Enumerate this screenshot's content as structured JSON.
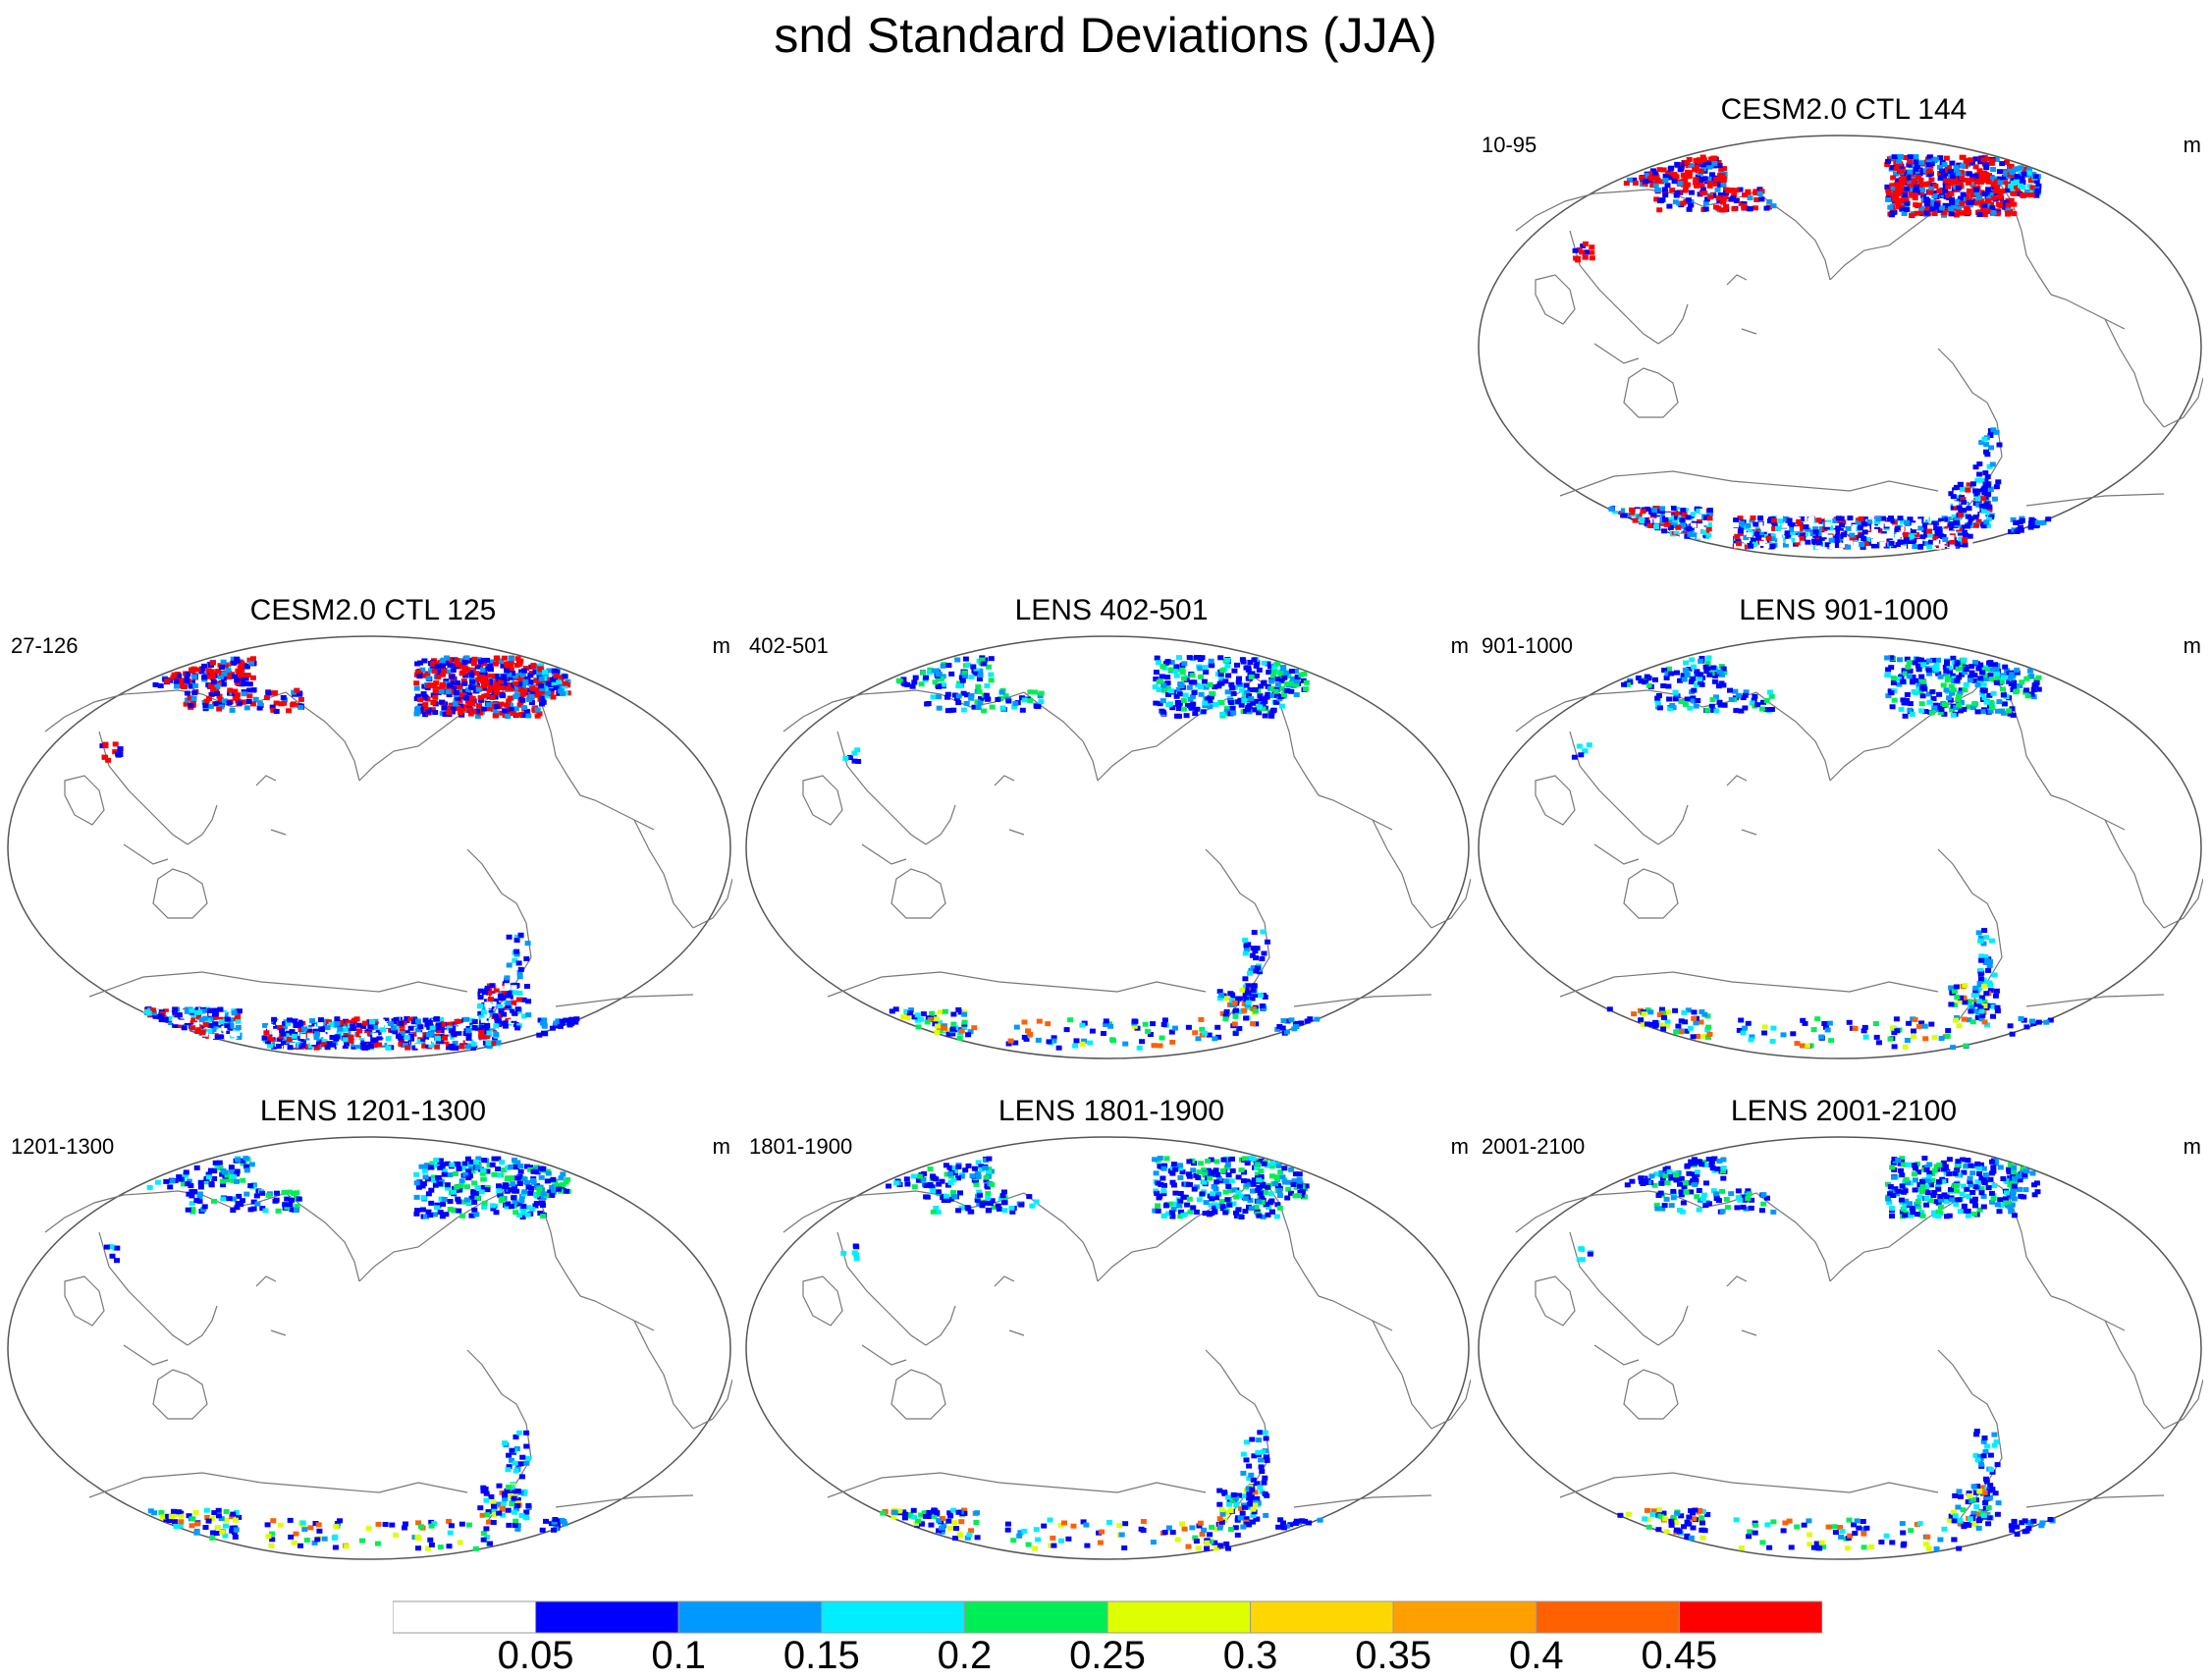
{
  "chart_data": {
    "type": "map",
    "title": "snd Standard Deviations (JJA)",
    "units": "m",
    "projection": "Robinson, Pacific-centered",
    "colorbar": {
      "levels": [
        "0.05",
        "0.1",
        "0.15",
        "0.2",
        "0.25",
        "0.3",
        "0.35",
        "0.4",
        "0.45"
      ],
      "colors": [
        "#ffffff",
        "#0000ff",
        "#0099ff",
        "#00eeff",
        "#00ee55",
        "#ddff00",
        "#ffd700",
        "#ffa000",
        "#ff6000",
        "#ff0000"
      ]
    },
    "panels": [
      {
        "title": "CESM2.0 CTL 144",
        "left": "10-95",
        "right": "m",
        "intensity": "high"
      },
      {
        "title": "CESM2.0 CTL 125",
        "left": "27-126",
        "right": "m",
        "intensity": "high"
      },
      {
        "title": "LENS 402-501",
        "left": "402-501",
        "right": "m",
        "intensity": "low"
      },
      {
        "title": "LENS 901-1000",
        "left": "901-1000",
        "right": "m",
        "intensity": "low"
      },
      {
        "title": "LENS 1201-1300",
        "left": "1201-1300",
        "right": "m",
        "intensity": "low"
      },
      {
        "title": "LENS 1801-1900",
        "left": "1801-1900",
        "right": "m",
        "intensity": "low"
      },
      {
        "title": "LENS 2001-2100",
        "left": "2001-2100",
        "right": "m",
        "intensity": "low"
      }
    ]
  }
}
